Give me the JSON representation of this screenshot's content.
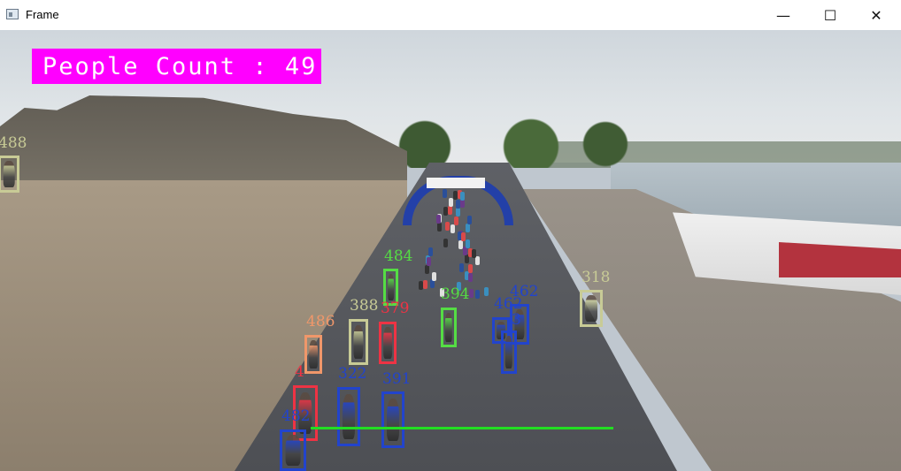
{
  "window": {
    "title": "Frame",
    "minimize_glyph": "—",
    "maximize_glyph": "☐",
    "close_glyph": "✕"
  },
  "overlay": {
    "people_count_label": "People Count : 49",
    "accent_color": "#ff00ff",
    "line_color": "#22dd22"
  },
  "detections": [
    {
      "id": "488",
      "color": "#c8cb96"
    },
    {
      "id": "484",
      "color": "#55dd44"
    },
    {
      "id": "394",
      "color": "#55dd44"
    },
    {
      "id": "486",
      "color": "#f0976a"
    },
    {
      "id": "388",
      "color": "#c8cb96"
    },
    {
      "id": "379",
      "color": "#ee3344"
    },
    {
      "id": "462",
      "color": "#2244cc"
    },
    {
      "id": "462",
      "color": "#2244cc"
    },
    {
      "id": "3",
      "color": "#2244cc"
    },
    {
      "id": "318",
      "color": "#c8cb96"
    },
    {
      "id": "4",
      "color": "#ee3344"
    },
    {
      "id": "322",
      "color": "#2244cc"
    },
    {
      "id": "391",
      "color": "#2244cc"
    },
    {
      "id": "482",
      "color": "#2244cc"
    }
  ]
}
